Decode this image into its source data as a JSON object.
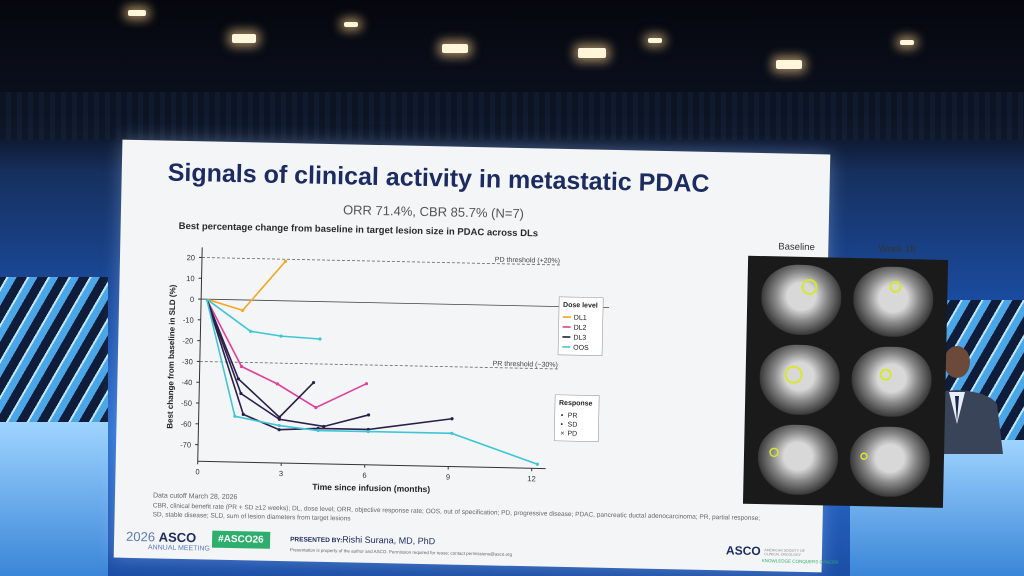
{
  "slide": {
    "title": "Signals of clinical activity in metastatic PDAC",
    "subtitle": "ORR 71.4%, CBR 85.7% (N=7)",
    "chart_title": "Best percentage change from baseline in target lesion size in PDAC across DLs",
    "image_labels": {
      "baseline": "Baseline",
      "week": "Week 18"
    },
    "footnotes": {
      "cutoff": "Data cutoff March 28, 2026",
      "line1": "CBR, clinical benefit rate (PR + SD ≥12 weeks); DL, dose level; ORR, objective response rate; OOS, out of specification; PD, progressive disease; PDAC, pancreatic ductal adenocarcinoma; PR, partial response;",
      "line2": "SD, stable disease; SLD, sum of lesion diameters from target lesions"
    },
    "footer": {
      "meeting_year": "2026",
      "meeting_name": "ASCO",
      "meeting_sub": "ANNUAL MEETING",
      "hashtag": "#ASCO26",
      "presented_by": "PRESENTED BY:",
      "presenter": "Rishi Surana, MD, PhD",
      "notice": "Presentation is property of the author and ASCO. Permission required for reuse; contact permissions@asco.org",
      "logo": "ASCO",
      "logo_sub": "AMERICAN SOCIETY OF CLINICAL ONCOLOGY",
      "logo_tag": "KNOWLEDGE CONQUERS CANCER"
    }
  },
  "colors": {
    "DL1": "#f5a623",
    "DL2": "#e0409a",
    "DL3": "#2a1f4a",
    "OOS": "#3fc6d6"
  },
  "chart_data": {
    "type": "line",
    "xlabel": "Time since infusion (months)",
    "ylabel": "Best change from baseline in SLD (%)",
    "x_ticks": [
      0,
      3,
      6,
      9,
      12
    ],
    "y_ticks": [
      20,
      10,
      0,
      -10,
      -20,
      -30,
      -40,
      -50,
      -60,
      -70
    ],
    "xlim": [
      0,
      12.5
    ],
    "ylim": [
      -78,
      22
    ],
    "thresholds": [
      {
        "label": "PD threshold (+20%)",
        "y": 20
      },
      {
        "label": "PR threshold (−30%)",
        "y": -30
      }
    ],
    "legend_title": "Dose level",
    "response_title": "Response",
    "response_items": [
      "PR",
      "SD",
      "PD"
    ],
    "series": [
      {
        "name": "DL1",
        "points": [
          [
            0.2,
            0
          ],
          [
            1.5,
            -5
          ],
          [
            3.0,
            19
          ]
        ]
      },
      {
        "name": "DL2",
        "points": [
          [
            0.2,
            0
          ],
          [
            1.5,
            -32
          ],
          [
            2.8,
            -40
          ],
          [
            4.2,
            -51
          ],
          [
            6.0,
            -39
          ]
        ]
      },
      {
        "name": "DL3",
        "points": [
          [
            0.2,
            0
          ],
          [
            1.4,
            -38
          ],
          [
            2.9,
            -56
          ],
          [
            4.1,
            -39
          ]
        ]
      },
      {
        "name": "DL3",
        "points": [
          [
            0.2,
            0
          ],
          [
            1.5,
            -45
          ],
          [
            2.9,
            -57
          ],
          [
            4.5,
            -60
          ],
          [
            6.1,
            -54
          ]
        ]
      },
      {
        "name": "DL3",
        "points": [
          [
            0.2,
            0
          ],
          [
            1.6,
            -55
          ],
          [
            2.9,
            -62
          ],
          [
            4.3,
            -61
          ],
          [
            6.1,
            -61
          ],
          [
            9.1,
            -55
          ]
        ]
      },
      {
        "name": "OOS",
        "points": [
          [
            0.2,
            0
          ],
          [
            1.8,
            -15
          ],
          [
            2.9,
            -17
          ],
          [
            4.3,
            -18
          ]
        ]
      },
      {
        "name": "OOS",
        "points": [
          [
            0.2,
            0
          ],
          [
            1.3,
            -56
          ],
          [
            2.9,
            -60
          ],
          [
            4.3,
            -62
          ],
          [
            6.1,
            -62
          ],
          [
            9.1,
            -62
          ],
          [
            12.2,
            -76
          ]
        ]
      }
    ]
  }
}
